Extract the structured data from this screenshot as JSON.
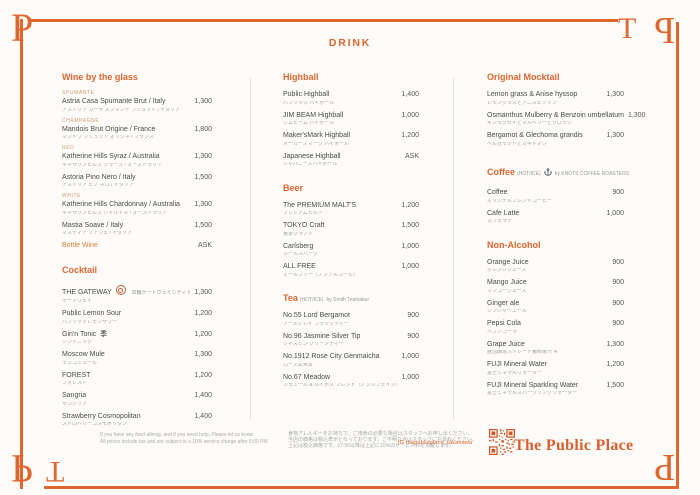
{
  "page": {
    "title": "DRINK"
  },
  "colors": {
    "accent": "#dd6630",
    "frame": "#e0662f",
    "category_label": "#cf9c72",
    "item_text": "#4c4c4c",
    "sub_text": "#a2a2a2",
    "divider": "#e4dfd8",
    "qr": "#cd5728",
    "background": "#fcfbf8"
  },
  "icons": {
    "coffee_byline_icon": "anchor-icon",
    "gateway_badge": "gateway-seal-icon",
    "gin_badge": "gin-brand-icon",
    "qr": "qr-code"
  },
  "menu": {
    "columns": [
      {
        "sections": [
          {
            "title": "Wine by the glass",
            "items": [
              {
                "label": "SPUMANTE",
                "name": "Astria Casa Spumante Brut / Italy",
                "ja": "アストリア カーサ スプマンテ ブリュット / イタリア",
                "price": "1,300"
              },
              {
                "label": "CHAMPAGNE",
                "name": "Mandois Brut Origine / France",
                "ja": "マンドワ ブリュット オリジネ / フランス",
                "price": "1,800"
              },
              {
                "label": "RED",
                "name": "Katherine Hills Syraz / Australia",
                "ja": "キャサリンヒルズ シラーズ / オーストラリア",
                "price": "1,300"
              },
              {
                "name": "Astoria Pino Nero / Italy",
                "ja": "アストリア ピノ ネロ / イタリア",
                "price": "1,500"
              },
              {
                "label": "WHITE",
                "name": "Katherine Hills Chardonnay / Australia",
                "ja": "キャサリンヒルズ シャルドネ / オーストラリア",
                "price": "1,300"
              },
              {
                "name": "Mastia Soave / Italy",
                "ja": "マスティア ソアヴェ / イタリア",
                "price": "1,500"
              },
              {
                "name": "Bottle Wine",
                "price": "ASK",
                "accent": true,
                "spaced": true
              }
            ]
          },
          {
            "title": "Cocktail",
            "items": [
              {
                "name": "THE GATEWAY",
                "badge": true,
                "note": "高輪ゲートウェイシティ 限定",
                "ja": "ゲートウェイ",
                "price": "1,300"
              },
              {
                "name": "Public Lemon Sour",
                "ja": "パブリックレモンサワー",
                "price": "1,200"
              },
              {
                "name": "Gin'n Tonic",
                "mark": "季",
                "ja": "ジントニック",
                "price": "1,200"
              },
              {
                "name": "Moscow Mule",
                "ja": "モスコミュール",
                "price": "1,300"
              },
              {
                "name": "FOREST",
                "ja": "フォレスト",
                "price": "1,200"
              },
              {
                "name": "Sangria",
                "ja": "サングリア",
                "price": "1,400"
              },
              {
                "name": "Strawberry Cosmopolitan",
                "ja": "ストロベリーコスモポリタン",
                "price": "1,400"
              }
            ]
          }
        ]
      },
      {
        "sections": [
          {
            "title": "Highball",
            "items": [
              {
                "name": "Public Highball",
                "ja": "パブリック ハイボール",
                "price": "1,400"
              },
              {
                "name": "JIM BEAM Highball",
                "ja": "ジムビーム ハイボール",
                "price": "1,000"
              },
              {
                "name": "Maker'sMark Highball",
                "ja": "メーカーズマーク ハイボール",
                "price": "1,200"
              },
              {
                "name": "Japanese Highball",
                "ja": "ジャパニーズハイボール",
                "price": "ASK"
              }
            ]
          },
          {
            "title": "Beer",
            "items": [
              {
                "name": "The PREMIUM MALT'S",
                "ja": "プレミアムモルツ",
                "price": "1,200"
              },
              {
                "name": "TOKYO Craft",
                "ja": "東京クラフト",
                "price": "1,500"
              },
              {
                "name": "Carlsberg",
                "ja": "カールスバーグ",
                "price": "1,000"
              },
              {
                "name": "ALL FREE",
                "ja": "オールフリー（ノンアルコール）",
                "price": "1,000"
              }
            ]
          },
          {
            "title": "Tea",
            "suffix": "(HOT/ICE)",
            "byline": "by Smith Teamaker",
            "items": [
              {
                "name": "No.55 Lord Bergamot",
                "ja": "アールグレイ ブラックティー",
                "price": "900"
              },
              {
                "name": "No.96 Jasmine Silver Tip",
                "ja": "ジャスミン グリーンティー",
                "price": "900"
              },
              {
                "name": "No.1912 Rose City Genmaicha",
                "ja": "ローズ玄米茶",
                "price": "1,000"
              },
              {
                "name": "No.67 Meadow",
                "ja": "カモミール & ルイボス ブレンド（ノンカフェイン）",
                "price": "1,000"
              }
            ]
          }
        ]
      },
      {
        "sections": [
          {
            "title": "Original Mocktail",
            "items": [
              {
                "name": "Lemon grass & Anise hyssop",
                "ja": "レモングラスとアニスヒソップ",
                "price": "1,300"
              },
              {
                "name": "Osmanthus Mulberry & Benzoin umbellatum",
                "ja": "キンモクセイとマルベリーとクロモジ",
                "price": "1,300"
              },
              {
                "name": "Bergamot & Glechoma grandis",
                "ja": "ベルガモットとカキドオシ",
                "price": "1,300"
              }
            ]
          },
          {
            "title": "Coffee",
            "suffix": "(HOT/ICE)",
            "icon": "anchor-icon",
            "byline": "by KNOTS COFFEE ROASTERS",
            "items": [
              {
                "name": "Coffee",
                "ja": "オリジナルブレンドコーヒー",
                "price": "900"
              },
              {
                "name": "Cafe Latte",
                "ja": "カフェラテ",
                "price": "1,000"
              }
            ]
          },
          {
            "title": "Non-Alcohol",
            "items": [
              {
                "name": "Orange Juice",
                "ja": "オレンジジュース",
                "price": "900"
              },
              {
                "name": "Mango Juice",
                "ja": "マンゴージュース",
                "price": "900"
              },
              {
                "name": "Ginger ale",
                "ja": "ジンジャーエール",
                "price": "900"
              },
              {
                "name": "Pepsi Cola",
                "ja": "ペプシコーラ",
                "price": "900"
              },
              {
                "name": "Grape Juice",
                "ja": "勝沼醸造ストレート葡萄果汁 ※",
                "price": "1,300"
              },
              {
                "name": "FUJI Mineral Water",
                "ja": "富士ミネラルウォーター",
                "price": "1,200"
              },
              {
                "name": "FUJI Mineral Sparkling Water",
                "ja": "富士ミネラルスパークリングウォーター",
                "price": "1,500"
              }
            ]
          }
        ]
      }
    ]
  },
  "footer": {
    "en_line1": "If you have any food allergy, and if you need help, Please let us know.",
    "en_line2": "All prices include tax and are subject to a 10% service charge after 5:00 PM.",
    "ja_line1": "食物アレルギーをお持ちで、ご用命の必要な場合はスタッフへお申し出ください。",
    "ja_line2": "当店の価格は税込表示となっております。ご不明な点はスタッフにお尋ねください。",
    "ja_line3": "上記は税込価格です。17:00以降は上記に10%のサービス料を頂戴します。"
  },
  "brand": {
    "instagram": "IG  thepublicplace_takanawa",
    "logo": "The Public Place",
    "frame_letters": [
      "P",
      "T",
      "P",
      "P",
      "T",
      "P"
    ]
  }
}
